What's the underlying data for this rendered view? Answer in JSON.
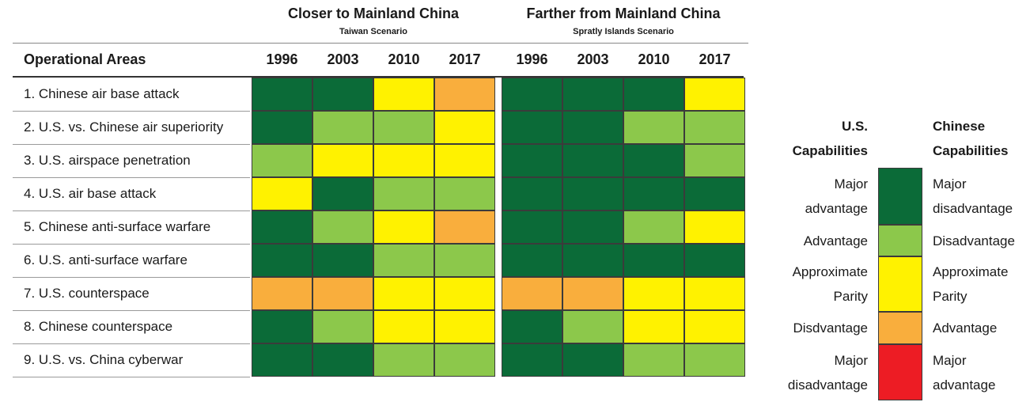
{
  "chart_data": {
    "type": "heatmap",
    "groups": [
      {
        "title": "Closer to Mainland China",
        "subtitle": "Taiwan Scenario",
        "years": [
          "1996",
          "2003",
          "2010",
          "2017"
        ]
      },
      {
        "title": "Farther from Mainland China",
        "subtitle": "Spratly Islands Scenario",
        "years": [
          "1996",
          "2003",
          "2010",
          "2017"
        ]
      }
    ],
    "row_header": "Operational Areas",
    "rows": [
      "1. Chinese air base attack",
      "2. U.S. vs. Chinese air superiority",
      "3. U.S. airspace penetration",
      "4. U.S. air base attack",
      "5. Chinese anti-surface warfare",
      "6. U.S. anti-surface warfare",
      "7. U.S. counterspace",
      "8. Chinese counterspace",
      "9. U.S. vs. China cyberwar"
    ],
    "scale_note": "values index the legend categories: 0=Major advantage(US), 1=Advantage, 2=Approximate Parity, 3=Disadvantage, 4=Major disadvantage",
    "values": [
      [
        [
          0,
          0,
          2,
          3
        ],
        [
          0,
          0,
          0,
          2
        ]
      ],
      [
        [
          0,
          1,
          1,
          2
        ],
        [
          0,
          0,
          1,
          1
        ]
      ],
      [
        [
          1,
          2,
          2,
          2
        ],
        [
          0,
          0,
          0,
          1
        ]
      ],
      [
        [
          2,
          0,
          1,
          1
        ],
        [
          0,
          0,
          0,
          0
        ]
      ],
      [
        [
          0,
          1,
          2,
          3
        ],
        [
          0,
          0,
          1,
          2
        ]
      ],
      [
        [
          0,
          0,
          1,
          1
        ],
        [
          0,
          0,
          0,
          0
        ]
      ],
      [
        [
          3,
          3,
          2,
          2
        ],
        [
          3,
          3,
          2,
          2
        ]
      ],
      [
        [
          0,
          1,
          2,
          2
        ],
        [
          0,
          1,
          2,
          2
        ]
      ],
      [
        [
          0,
          0,
          1,
          1
        ],
        [
          0,
          0,
          1,
          1
        ]
      ]
    ],
    "legend": {
      "left_title": [
        "U.S.",
        "Capabilities"
      ],
      "right_title": [
        "Chinese",
        "Capabilities"
      ],
      "items": [
        {
          "us": [
            "Major",
            "advantage"
          ],
          "china": [
            "Major",
            "disadvantage"
          ],
          "color": "#0b6b38"
        },
        {
          "us": [
            "Advantage"
          ],
          "china": [
            "Disadvantage"
          ],
          "color": "#8cc84b"
        },
        {
          "us": [
            "Approximate",
            "Parity"
          ],
          "china": [
            "Approximate",
            "Parity"
          ],
          "color": "#fff200"
        },
        {
          "us": [
            "Disdvantage"
          ],
          "china": [
            "Advantage"
          ],
          "color": "#f9ae3d"
        },
        {
          "us": [
            "Major",
            "disadvantage"
          ],
          "china": [
            "Major",
            "advantage"
          ],
          "color": "#ed1c24"
        }
      ]
    }
  }
}
